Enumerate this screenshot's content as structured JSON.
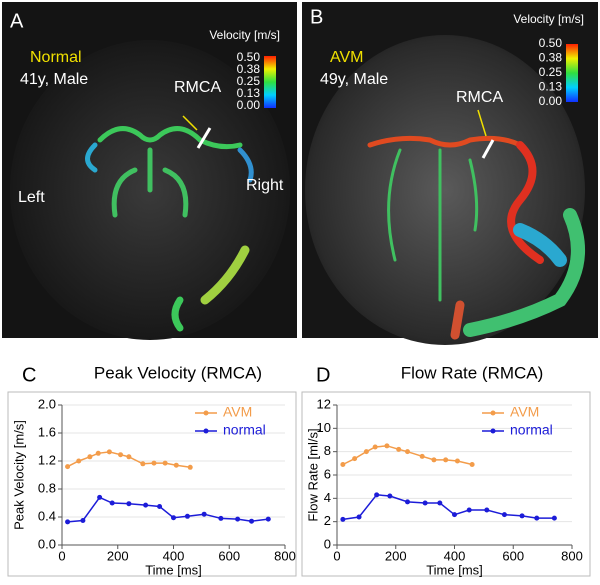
{
  "panels": [
    {
      "label": "A",
      "group": "Normal",
      "subject": "41y, Male",
      "vessel": "RMCA",
      "left": "Left",
      "right": "Right",
      "colorbar_title": "Velocity [m/s]",
      "colorbar_ticks": [
        "0.50",
        "0.38",
        "0.25",
        "0.13",
        "0.00"
      ]
    },
    {
      "label": "B",
      "group": "AVM",
      "subject": "49y, Male",
      "vessel": "RMCA",
      "colorbar_title": "Velocity [m/s]",
      "colorbar_ticks": [
        "0.50",
        "0.38",
        "0.25",
        "0.13",
        "0.00"
      ]
    }
  ],
  "chart_data": [
    {
      "type": "line",
      "label": "C",
      "title": "Peak Velocity (RMCA)",
      "xlabel": "Time [ms]",
      "ylabel": "Peak Velocity [m/s]",
      "xlim": [
        0,
        800
      ],
      "xticks": [
        0,
        200,
        400,
        600,
        800
      ],
      "ylim": [
        0,
        2
      ],
      "yticks": [
        {
          "value": 0,
          "label": "0.0"
        },
        0.4,
        0.8,
        1.2,
        1.6,
        {
          "value": 2,
          "label": "2.0"
        }
      ],
      "grid": true,
      "legend": "upper right",
      "series": [
        {
          "name": "AVM",
          "color": "#f39c4a",
          "x": [
            20,
            60,
            100,
            130,
            170,
            210,
            240,
            290,
            330,
            370,
            410,
            460
          ],
          "values": [
            1.12,
            1.2,
            1.26,
            1.31,
            1.33,
            1.29,
            1.26,
            1.16,
            1.17,
            1.17,
            1.14,
            1.11
          ]
        },
        {
          "name": "normal",
          "color": "#1c1cd8",
          "x": [
            20,
            75,
            135,
            180,
            240,
            300,
            350,
            400,
            450,
            510,
            570,
            630,
            680,
            740
          ],
          "values": [
            0.33,
            0.35,
            0.68,
            0.6,
            0.59,
            0.57,
            0.55,
            0.39,
            0.41,
            0.44,
            0.38,
            0.37,
            0.34,
            0.37
          ]
        }
      ]
    },
    {
      "type": "line",
      "label": "D",
      "title": "Flow Rate (RMCA)",
      "xlabel": "Time [ms]",
      "ylabel": "Flow Rate [ml/s]",
      "xlim": [
        0,
        800
      ],
      "xticks": [
        0,
        200,
        400,
        600,
        800
      ],
      "ylim": [
        0,
        12
      ],
      "yticks": [
        0,
        2,
        4,
        6,
        8,
        10,
        12
      ],
      "grid": true,
      "legend": "upper right",
      "series": [
        {
          "name": "AVM",
          "color": "#f39c4a",
          "x": [
            20,
            60,
            100,
            130,
            170,
            210,
            240,
            290,
            330,
            370,
            410,
            460
          ],
          "values": [
            6.9,
            7.4,
            8.0,
            8.4,
            8.5,
            8.2,
            8.0,
            7.6,
            7.3,
            7.3,
            7.2,
            6.9
          ]
        },
        {
          "name": "normal",
          "color": "#1c1cd8",
          "x": [
            20,
            75,
            135,
            180,
            240,
            300,
            350,
            400,
            450,
            510,
            570,
            630,
            680,
            740
          ],
          "values": [
            2.2,
            2.4,
            4.3,
            4.2,
            3.7,
            3.6,
            3.6,
            2.6,
            3.0,
            3.0,
            2.6,
            2.5,
            2.3,
            2.3
          ]
        }
      ]
    }
  ]
}
